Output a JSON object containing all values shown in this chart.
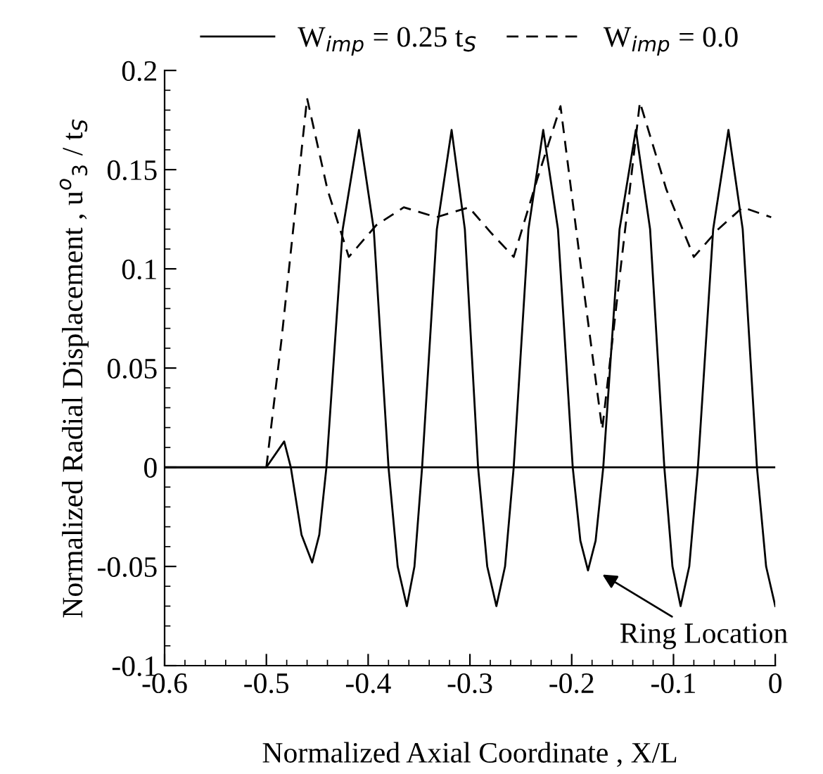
{
  "chart_data": {
    "type": "line",
    "xlabel": "Normalized Axial Coordinate , X/L",
    "ylabel": "Normalized Radial Displacement , u$^{o}$$_{3}$ / t$_{S}$",
    "xlim": [
      -0.6,
      0
    ],
    "xticks": [
      -0.6,
      -0.5,
      -0.4,
      -0.3,
      -0.2,
      -0.1,
      0
    ],
    "ylim": [
      -0.1,
      0.2
    ],
    "yticks": [
      -0.1,
      -0.05,
      0,
      0.05,
      0.1,
      0.15,
      0.2
    ],
    "grid": false,
    "legend": "top",
    "marker": "none",
    "series": [
      {
        "name": "W$_{imp}$ = 0.25 t$_{S}$",
        "color": "#000000",
        "line_style": "solid",
        "x": [
          -0.6,
          -0.5,
          -0.4825,
          -0.476,
          -0.4655,
          -0.455,
          -0.448,
          -0.441,
          -0.425,
          -0.409,
          -0.3945,
          -0.38,
          -0.371,
          -0.362,
          -0.3545,
          -0.347,
          -0.3325,
          -0.318,
          -0.305,
          -0.292,
          -0.283,
          -0.274,
          -0.2655,
          -0.257,
          -0.2425,
          -0.228,
          -0.2135,
          -0.199,
          -0.1915,
          -0.184,
          -0.1765,
          -0.169,
          -0.153,
          -0.137,
          -0.123,
          -0.109,
          -0.101,
          -0.093,
          -0.0845,
          -0.076,
          -0.061,
          -0.046,
          -0.032,
          -0.018,
          -0.009,
          0
        ],
        "values": [
          0,
          0,
          0.013,
          0,
          -0.034,
          -0.048,
          -0.034,
          0,
          0.12,
          0.17,
          0.12,
          0,
          -0.05,
          -0.07,
          -0.05,
          0,
          0.12,
          0.17,
          0.12,
          0,
          -0.05,
          -0.07,
          -0.05,
          0,
          0.12,
          0.17,
          0.12,
          0,
          -0.037,
          -0.052,
          -0.037,
          0,
          0.12,
          0.17,
          0.12,
          0,
          -0.05,
          -0.07,
          -0.05,
          0,
          0.12,
          0.17,
          0.12,
          0,
          -0.05,
          -0.07
        ]
      },
      {
        "name": "W$_{imp}$ = 0.0",
        "color": "#000000",
        "line_style": "dashed",
        "x": [
          -0.5,
          -0.485,
          -0.46,
          -0.44,
          -0.419,
          -0.392,
          -0.365,
          -0.333,
          -0.301,
          -0.279,
          -0.257,
          -0.234,
          -0.211,
          -0.188,
          -0.17,
          -0.152,
          -0.133,
          -0.107,
          -0.08,
          -0.056,
          -0.032,
          -0.004
        ],
        "values": [
          0,
          0.065,
          0.186,
          0.14,
          0.106,
          0.122,
          0.131,
          0.126,
          0.131,
          0.118,
          0.106,
          0.145,
          0.182,
          0.089,
          0.019,
          0.1,
          0.184,
          0.14,
          0.106,
          0.12,
          0.131,
          0.126
        ]
      }
    ],
    "ref_lines": [
      {
        "axis": "y",
        "value": 0,
        "color": "#000000",
        "line_style": "solid"
      }
    ],
    "annotations": [
      "Ring Location"
    ]
  }
}
